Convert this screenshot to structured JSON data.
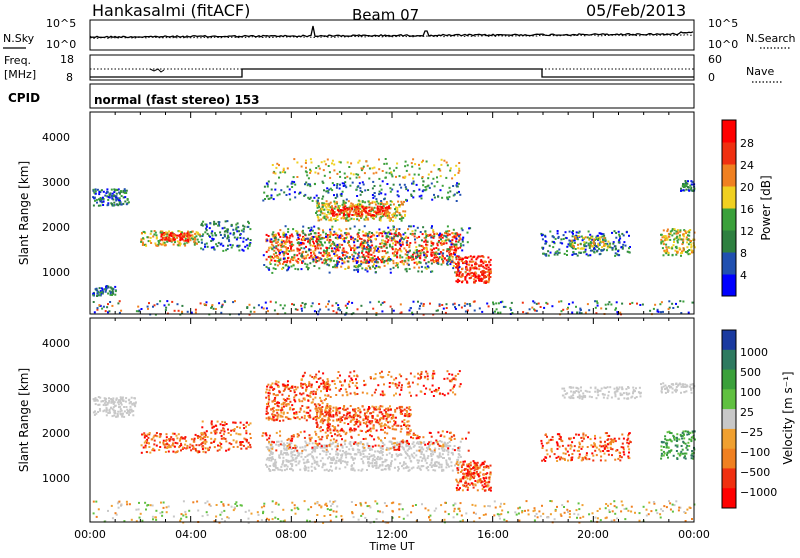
{
  "header": {
    "station": "Hankasalmi (fitACF)",
    "beam": "Beam 07",
    "date": "05/Feb/2013"
  },
  "noise_panel": {
    "left_label": "N.Sky",
    "right_label": "N.Search",
    "ticks_left": [
      "10^5",
      "10^0"
    ],
    "ticks_right": [
      "10^5",
      "10^0"
    ]
  },
  "freq_panel": {
    "left_label_1": "Freq.",
    "left_label_2": "[MHz]",
    "right_label": "Nave",
    "ticks_left": [
      "18",
      "8"
    ],
    "ticks_right": [
      "60",
      "0"
    ]
  },
  "cpid_panel": {
    "label": "CPID",
    "mode_text": "normal (fast stereo) 153"
  },
  "chart_data": [
    {
      "type": "heatmap",
      "title": "",
      "ylabel": "Slant Range [km]",
      "xlabel": "",
      "ylim": [
        180,
        4600
      ],
      "y_ticks": [
        "1000",
        "2000",
        "3000",
        "4000"
      ],
      "xlim": [
        0,
        24
      ],
      "colorbar": {
        "label": "Power [dB]",
        "ticks": [
          "4",
          "8",
          "12",
          "16",
          "20",
          "24",
          "28"
        ],
        "colors": [
          "#0000ff",
          "#2050b0",
          "#2e8040",
          "#3aa03a",
          "#f0d020",
          "#f08020",
          "#f03010",
          "#ff0000"
        ]
      }
    },
    {
      "type": "heatmap",
      "title": "",
      "ylabel": "Slant Range [km]",
      "xlabel": "Time UT",
      "ylim": [
        180,
        4600
      ],
      "y_ticks": [
        "1000",
        "2000",
        "3000",
        "4000"
      ],
      "xlim": [
        0,
        24
      ],
      "x_ticks": [
        "00:00",
        "04:00",
        "08:00",
        "12:00",
        "16:00",
        "20:00",
        "00:00"
      ],
      "colorbar": {
        "label": "Velocity [m s⁻¹]",
        "ticks": [
          "1000",
          "500",
          "100",
          "25",
          "−25",
          "−100",
          "−500",
          "−1000"
        ],
        "colors": [
          "#1a3aa0",
          "#2e7a60",
          "#3aa03a",
          "#60c040",
          "#c8c8c8",
          "#f0a030",
          "#f08020",
          "#f03010",
          "#ff0000"
        ]
      }
    }
  ]
}
